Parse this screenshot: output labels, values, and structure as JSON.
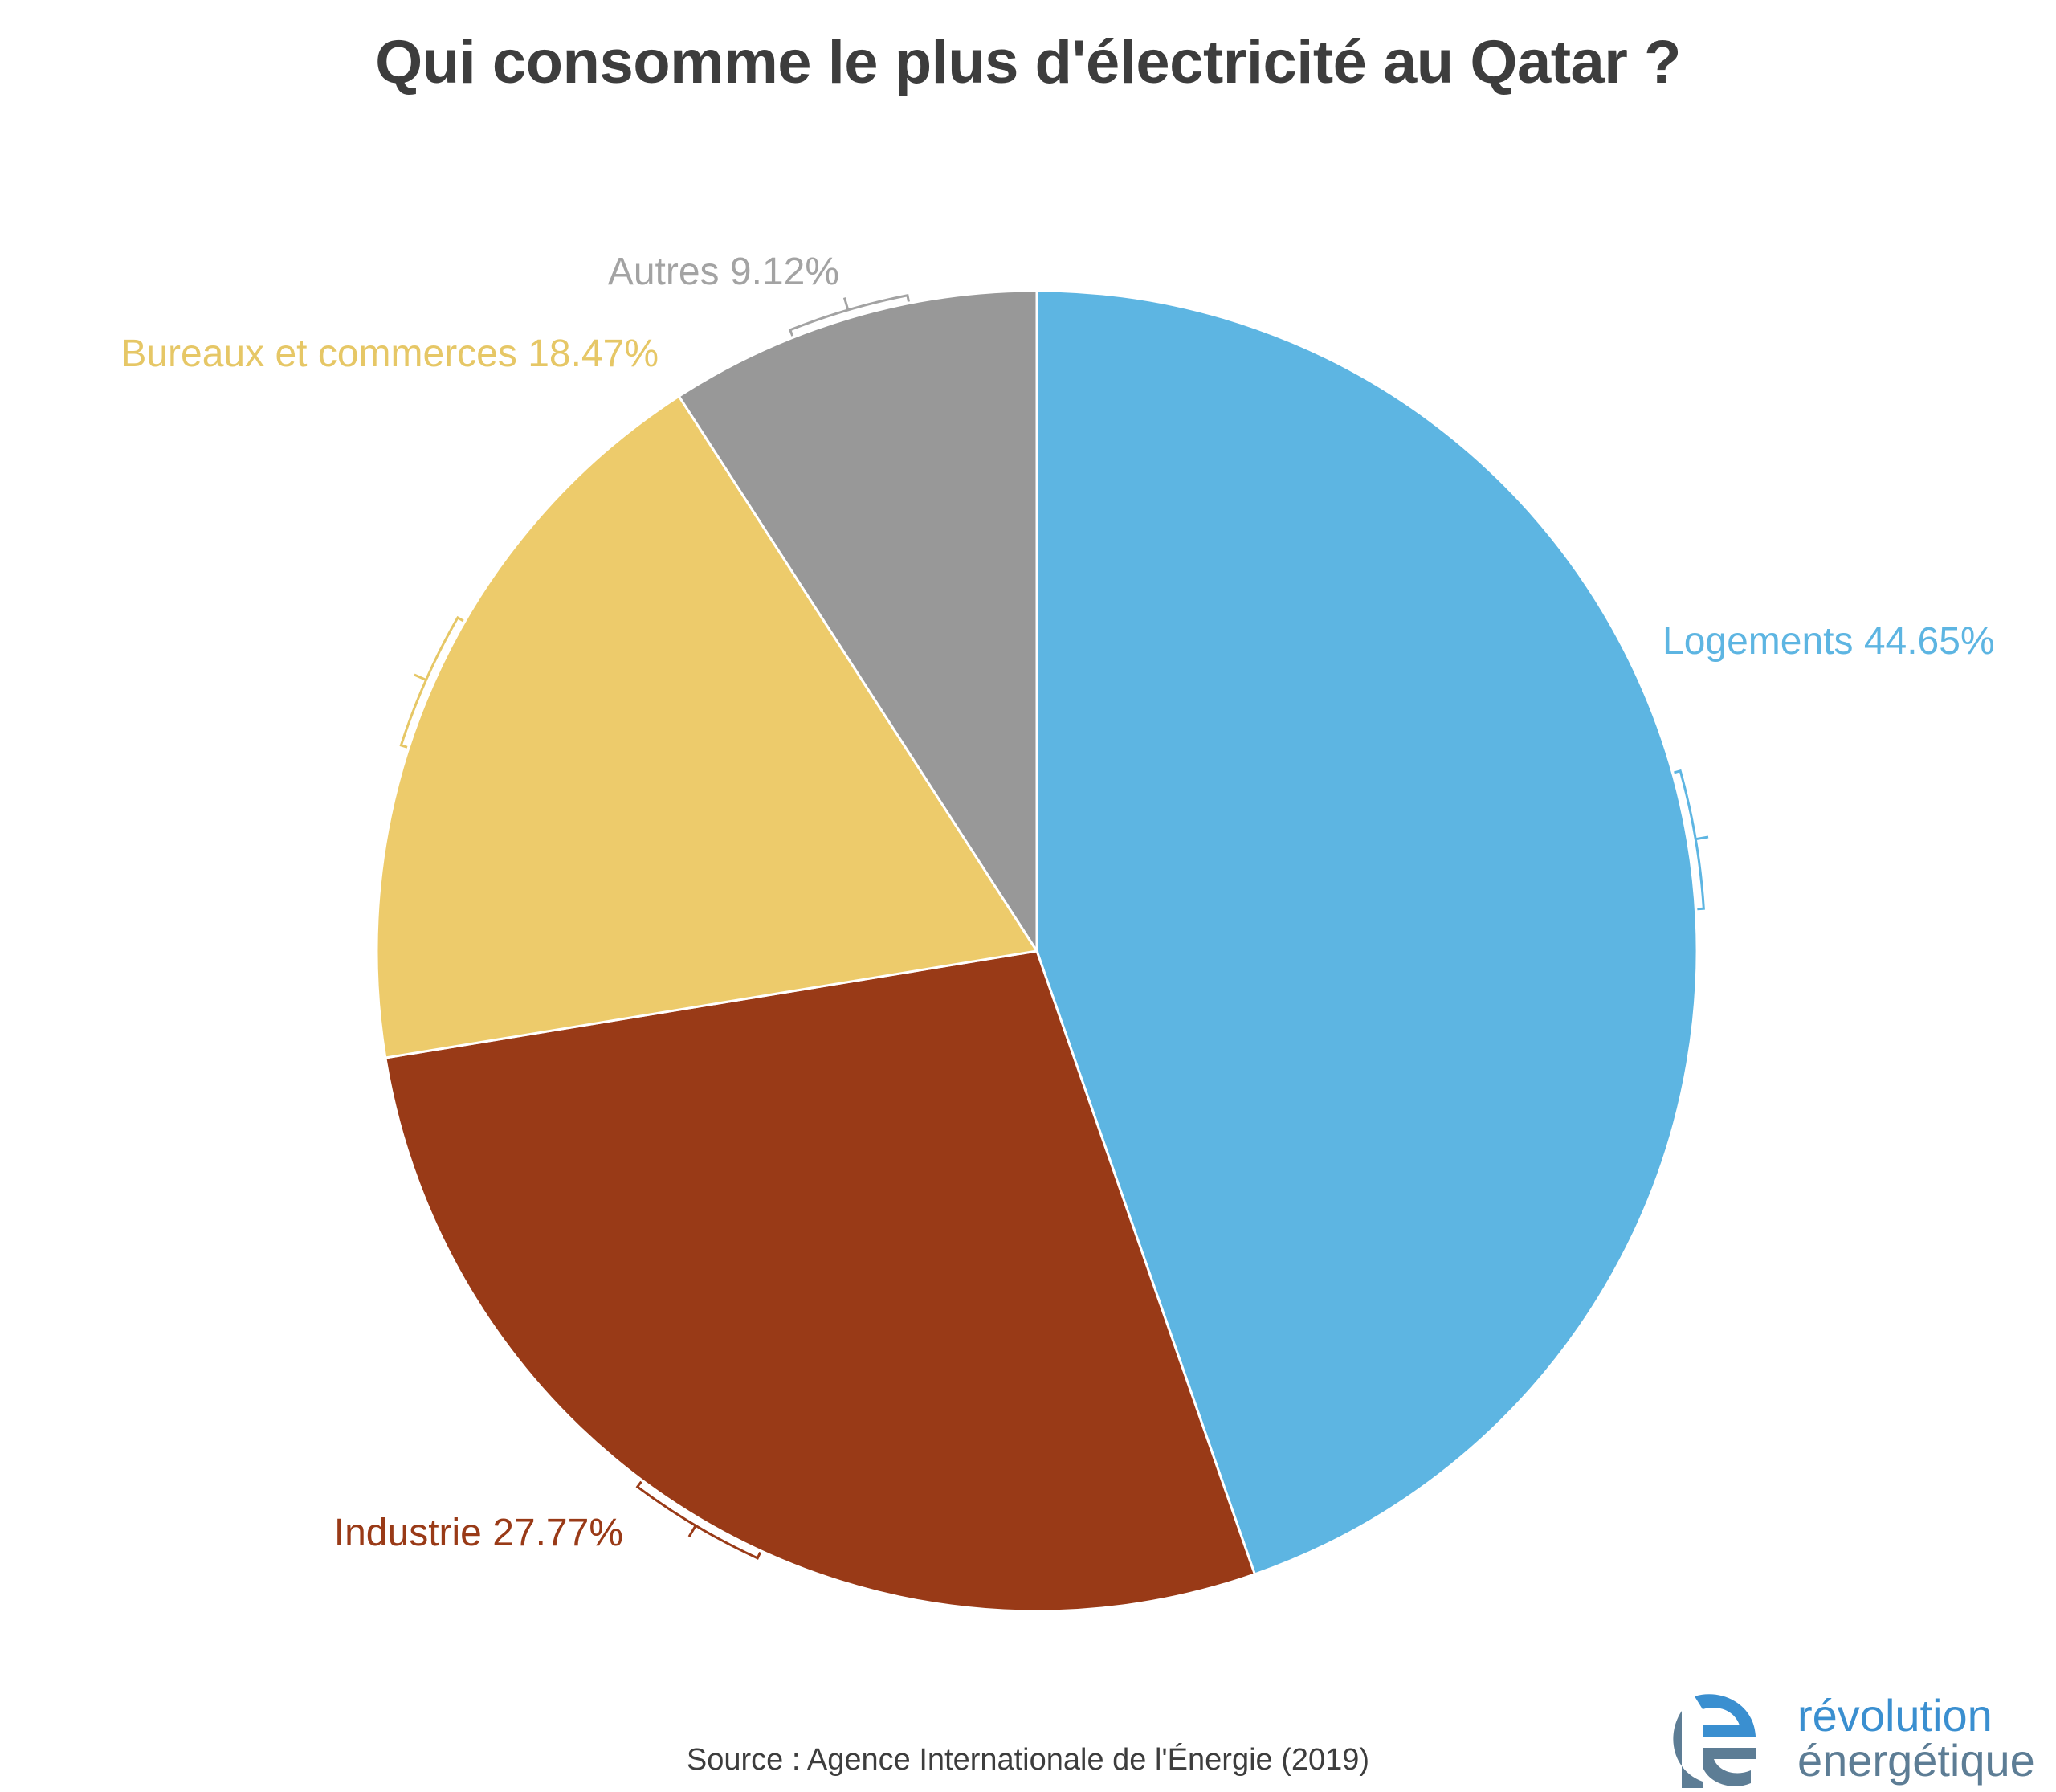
{
  "chart_data": {
    "type": "pie",
    "title": "Qui consomme le plus d'électricité au Qatar ?",
    "slices": [
      {
        "name": "Logements",
        "value": 44.65,
        "label": "Logements 44.65%",
        "color": "#5db5e2"
      },
      {
        "name": "Industrie",
        "value": 27.77,
        "label": "Industrie 27.77%",
        "color": "#993a17"
      },
      {
        "name": "Bureaux et commerces",
        "value": 18.47,
        "label": "Bureaux et commerces 18.47%",
        "color": "#edcb6b"
      },
      {
        "name": "Autres",
        "value": 9.12,
        "label": "Autres 9.12%",
        "color": "#989898"
      }
    ],
    "start_angle_deg": 0,
    "direction": "clockwise",
    "label_colors": {
      "Logements": "#5db5e2",
      "Industrie": "#993a17",
      "Bureaux et commerces": "#e6c766",
      "Autres": "#a3a3a3"
    }
  },
  "source": "Source : Agence Internationale de l'Énergie (2019)",
  "brand": {
    "line1": "révolution",
    "line2": "énergétique",
    "colors": {
      "primary": "#3a8fd0",
      "secondary": "#5d7d95"
    }
  }
}
